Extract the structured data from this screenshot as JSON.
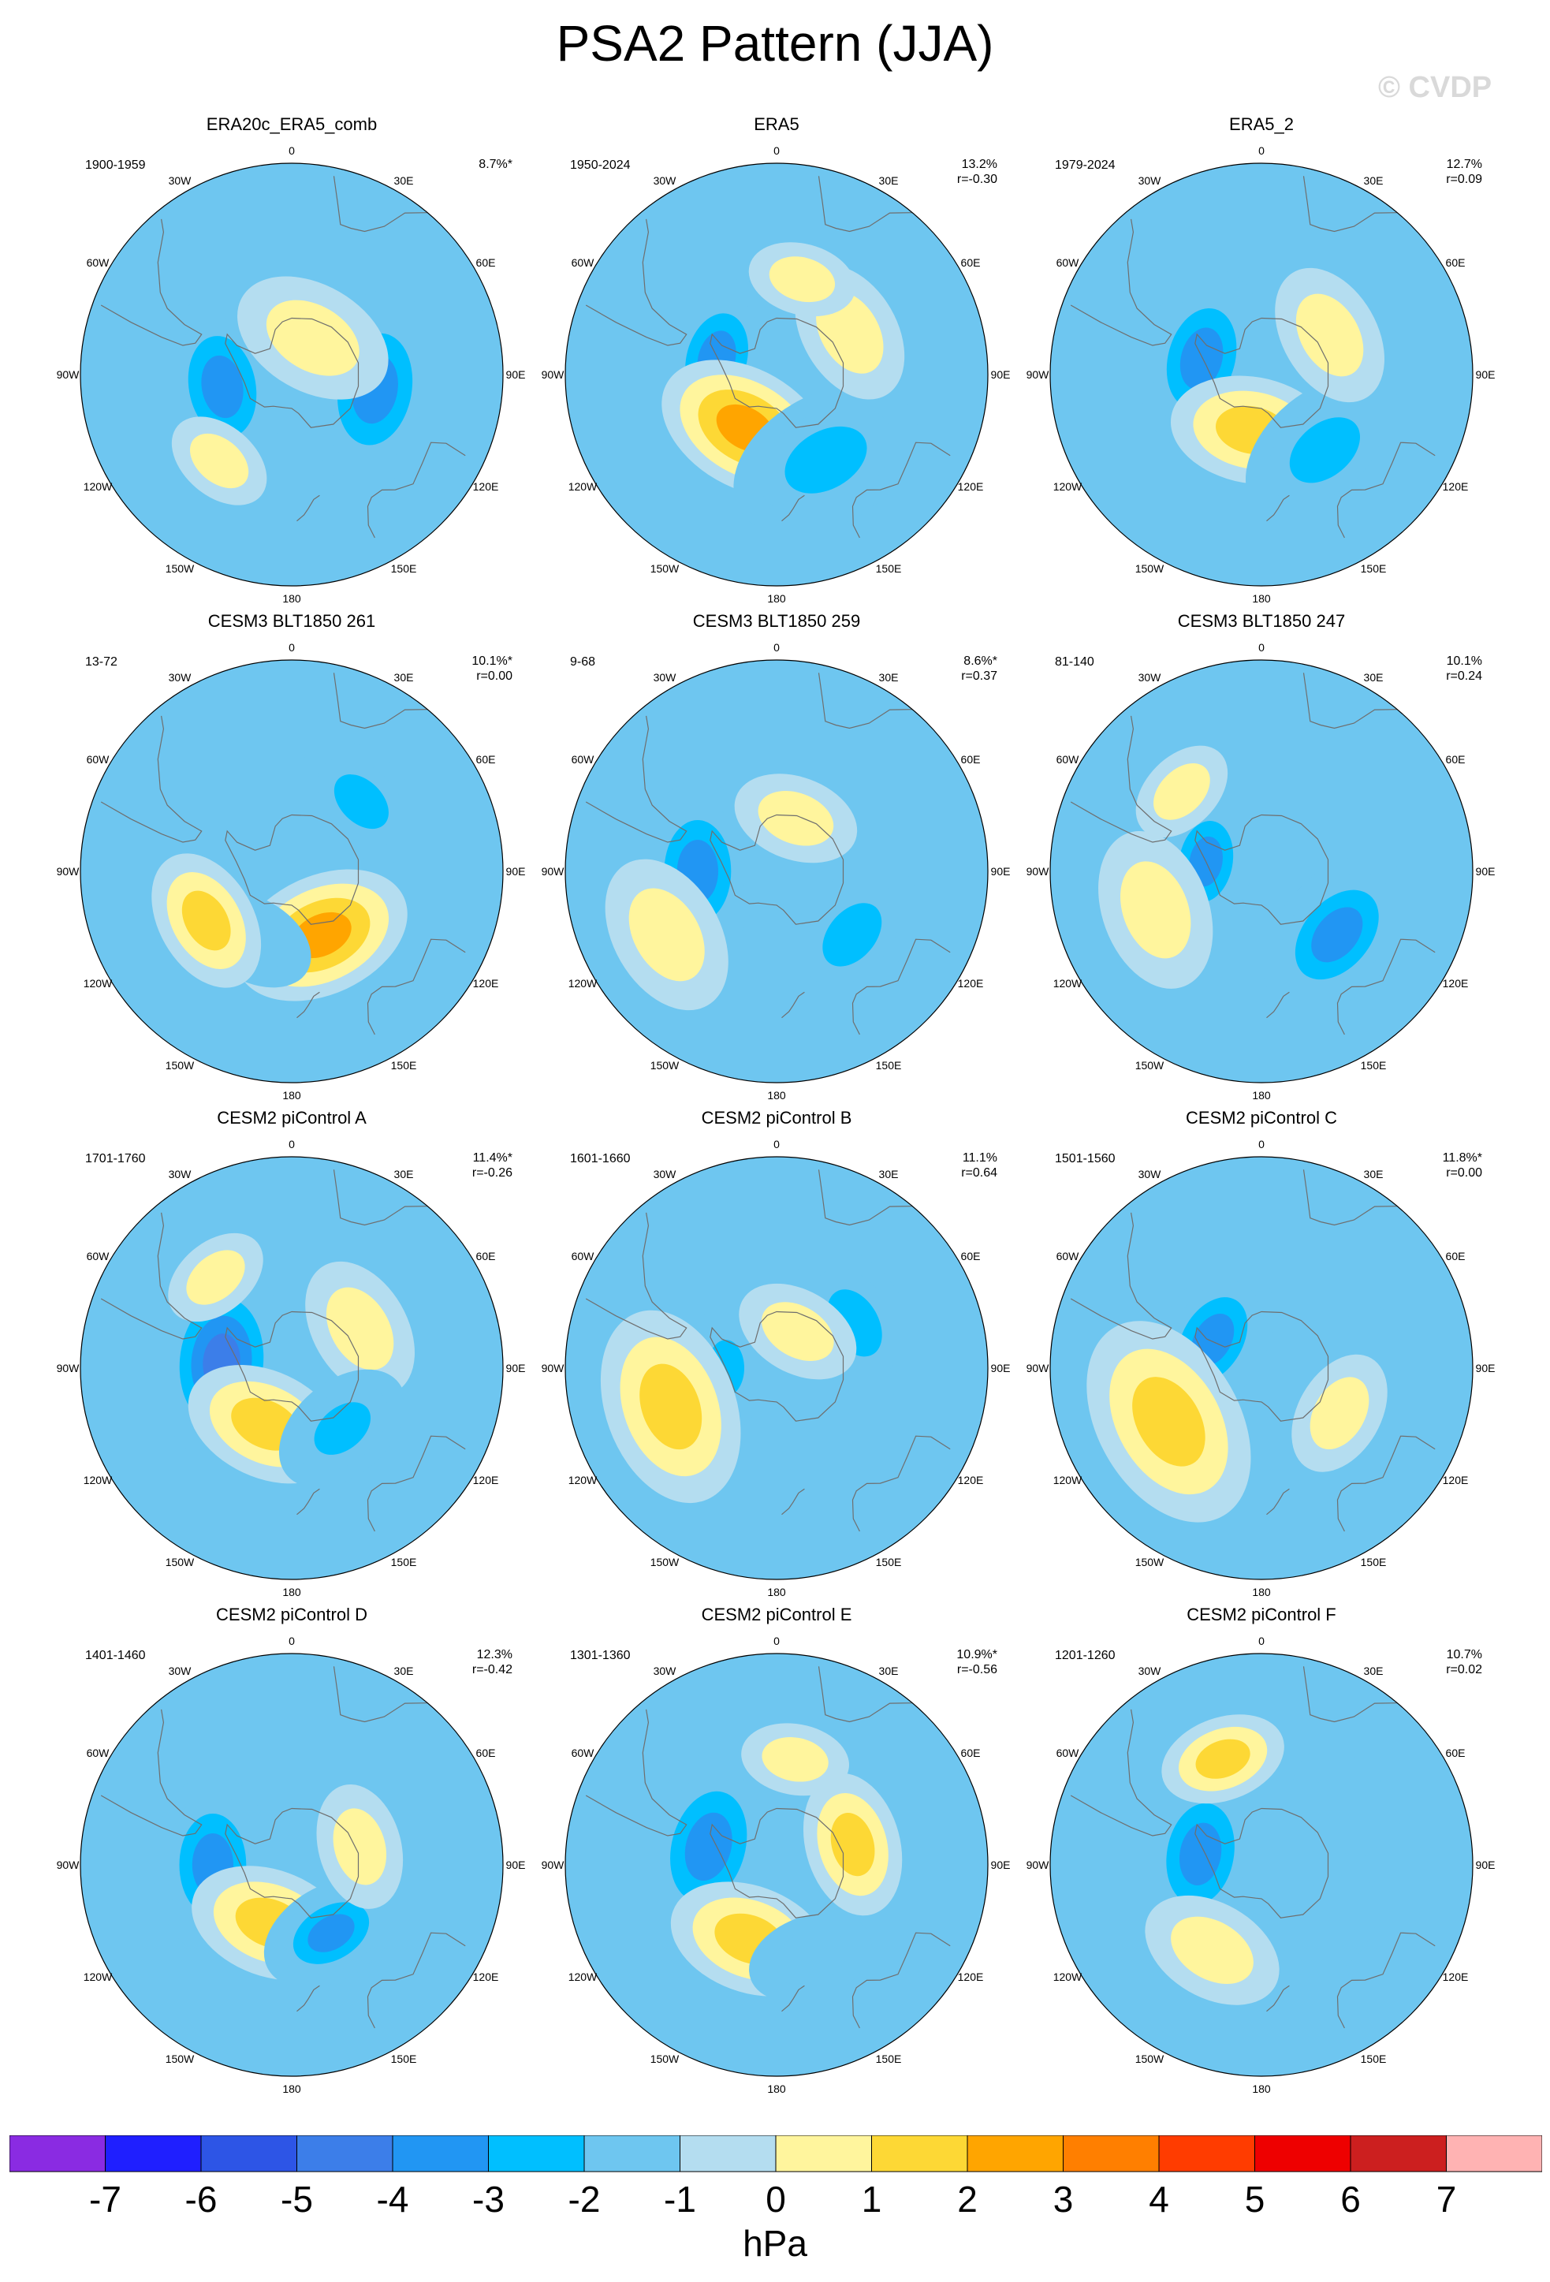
{
  "title": "PSA2 Pattern (JJA)",
  "watermark": "© CVDP",
  "units": "hPa",
  "colorbar": {
    "labels": [
      "-7",
      "-6",
      "-5",
      "-4",
      "-3",
      "-2",
      "-1",
      "0",
      "1",
      "2",
      "3",
      "4",
      "5",
      "6",
      "7"
    ],
    "colors": [
      "#8a2be2",
      "#1f1fff",
      "#2d55e6",
      "#3c7ee9",
      "#2196f3",
      "#00bfff",
      "#6ec6f0",
      "#b4ddf0",
      "#fff59d",
      "#fdd835",
      "#ffa500",
      "#ff7f00",
      "#ff3c00",
      "#ee0000",
      "#cc1f1f",
      "#ffb3b3"
    ]
  },
  "lon_labels": [
    "0",
    "30E",
    "60E",
    "90E",
    "120E",
    "150E",
    "180",
    "150W",
    "120W",
    "90W",
    "60W",
    "30W"
  ],
  "panels": [
    {
      "title": "ERA20c_ERA5_comb",
      "period": "1900-1959",
      "pct": "8.7%*",
      "r": "",
      "blobs": [
        {
          "lon": "100W",
          "lat": -65,
          "v": -3,
          "s": 1.0
        },
        {
          "lon": "100E",
          "lat": -60,
          "v": -3,
          "s": 1.1
        },
        {
          "lon": "30E",
          "lat": -75,
          "v": 1,
          "s": 0.9
        },
        {
          "lon": "140W",
          "lat": -50,
          "v": 1,
          "s": 0.6
        }
      ]
    },
    {
      "title": "ERA5",
      "period": "1950-2024",
      "pct": "13.2%",
      "r": "r=-0.30",
      "blobs": [
        {
          "lon": "75W",
          "lat": -68,
          "v": -3,
          "s": 0.9
        },
        {
          "lon": "150W",
          "lat": -68,
          "v": 3,
          "s": 1.0
        },
        {
          "lon": "150E",
          "lat": -55,
          "v": -2,
          "s": 1.1
        },
        {
          "lon": "60E",
          "lat": -60,
          "v": 1,
          "s": 0.8
        },
        {
          "lon": "15E",
          "lat": -55,
          "v": 1,
          "s": 0.6
        }
      ]
    },
    {
      "title": "ERA5_2",
      "period": "1979-2024",
      "pct": "12.7%",
      "r": "r=0.09",
      "blobs": [
        {
          "lon": "75W",
          "lat": -68,
          "v": -3,
          "s": 1.0
        },
        {
          "lon": "170W",
          "lat": -70,
          "v": 2,
          "s": 0.9
        },
        {
          "lon": "140E",
          "lat": -55,
          "v": -2,
          "s": 1.0
        },
        {
          "lon": "60E",
          "lat": -62,
          "v": 1,
          "s": 0.8
        }
      ]
    },
    {
      "title": "CESM3 BLT1850 261",
      "period": "13-72",
      "pct": "10.1%*",
      "r": "r=0.00",
      "blobs": [
        {
          "lon": "45E",
          "lat": -55,
          "v": -2,
          "s": 0.8
        },
        {
          "lon": "155E",
          "lat": -65,
          "v": 3,
          "s": 1.0
        },
        {
          "lon": "150W",
          "lat": -62,
          "v": -1,
          "s": 0.7
        },
        {
          "lon": "120W",
          "lat": -55,
          "v": 2,
          "s": 0.8
        }
      ]
    },
    {
      "title": "CESM3 BLT1850 259",
      "period": "9-68",
      "pct": "8.6%*",
      "r": "r=0.37",
      "blobs": [
        {
          "lon": "90W",
          "lat": -62,
          "v": -3,
          "s": 1.0
        },
        {
          "lon": "120W",
          "lat": -45,
          "v": 1,
          "s": 0.9
        },
        {
          "lon": "130E",
          "lat": -55,
          "v": -2,
          "s": 0.9
        },
        {
          "lon": "20E",
          "lat": -70,
          "v": 1,
          "s": 0.7
        }
      ]
    },
    {
      "title": "CESM3 BLT1850 247",
      "period": "81-140",
      "pct": "10.1%",
      "r": "r=0.24",
      "blobs": [
        {
          "lon": "80W",
          "lat": -70,
          "v": -3,
          "s": 0.8
        },
        {
          "lon": "130E",
          "lat": -55,
          "v": -3,
          "s": 1.0
        },
        {
          "lon": "110W",
          "lat": -50,
          "v": 1,
          "s": 0.9
        },
        {
          "lon": "45W",
          "lat": -50,
          "v": 1,
          "s": 0.6
        }
      ]
    },
    {
      "title": "CESM2 piControl A",
      "period": "1701-1760",
      "pct": "11.4%*",
      "r": "r=-0.26",
      "blobs": [
        {
          "lon": "85W",
          "lat": -65,
          "v": -4,
          "s": 1.1
        },
        {
          "lon": "155W",
          "lat": -68,
          "v": 2,
          "s": 0.9
        },
        {
          "lon": "60E",
          "lat": -62,
          "v": 1,
          "s": 0.8
        },
        {
          "lon": "140E",
          "lat": -62,
          "v": -2,
          "s": 0.8
        },
        {
          "lon": "40W",
          "lat": -48,
          "v": 1,
          "s": 0.6
        }
      ]
    },
    {
      "title": "CESM2 piControl B",
      "period": "1601-1660",
      "pct": "11.1%",
      "r": "r=0.64",
      "blobs": [
        {
          "lon": "90W",
          "lat": -72,
          "v": -2,
          "s": 0.7
        },
        {
          "lon": "110W",
          "lat": -50,
          "v": 2,
          "s": 1.1
        },
        {
          "lon": "60E",
          "lat": -58,
          "v": -2,
          "s": 0.9
        },
        {
          "lon": "30E",
          "lat": -75,
          "v": 1,
          "s": 0.7
        }
      ]
    },
    {
      "title": "CESM2 piControl C",
      "period": "1501-1560",
      "pct": "11.8%*",
      "r": "r=0.00",
      "blobs": [
        {
          "lon": "60W",
          "lat": -70,
          "v": -3,
          "s": 0.9
        },
        {
          "lon": "120W",
          "lat": -52,
          "v": 2,
          "s": 1.2
        },
        {
          "lon": "80E",
          "lat": -50,
          "v": -1,
          "s": 0.5
        },
        {
          "lon": "120E",
          "lat": -58,
          "v": 1,
          "s": 0.7
        }
      ]
    },
    {
      "title": "CESM2 piControl D",
      "period": "1401-1460",
      "pct": "12.3%",
      "r": "r=-0.42",
      "blobs": [
        {
          "lon": "90W",
          "lat": -62,
          "v": -3,
          "s": 1.0
        },
        {
          "lon": "160W",
          "lat": -68,
          "v": 2,
          "s": 0.9
        },
        {
          "lon": "150E",
          "lat": -62,
          "v": -3,
          "s": 0.8
        },
        {
          "lon": "75E",
          "lat": -65,
          "v": 1,
          "s": 0.7
        }
      ]
    },
    {
      "title": "CESM2 piControl E",
      "period": "1301-1360",
      "pct": "10.9%*",
      "r": "r=-0.56",
      "blobs": [
        {
          "lon": "75W",
          "lat": -65,
          "v": -3,
          "s": 1.1
        },
        {
          "lon": "160W",
          "lat": -62,
          "v": 2,
          "s": 0.9
        },
        {
          "lon": "75E",
          "lat": -62,
          "v": 2,
          "s": 0.8
        },
        {
          "lon": "160E",
          "lat": -55,
          "v": -1,
          "s": 0.7
        },
        {
          "lon": "10E",
          "lat": -52,
          "v": 1,
          "s": 0.6
        }
      ]
    },
    {
      "title": "CESM2 piControl F",
      "period": "1201-1260",
      "pct": "10.7%",
      "r": "r=0.02",
      "blobs": [
        {
          "lon": "80W",
          "lat": -68,
          "v": -3,
          "s": 1.0
        },
        {
          "lon": "20W",
          "lat": -50,
          "v": 2,
          "s": 0.7
        },
        {
          "lon": "60E",
          "lat": -55,
          "v": -1,
          "s": 0.8
        },
        {
          "lon": "135E",
          "lat": -58,
          "v": -1,
          "s": 0.7
        },
        {
          "lon": "150W",
          "lat": -55,
          "v": 1,
          "s": 0.8
        }
      ]
    }
  ]
}
